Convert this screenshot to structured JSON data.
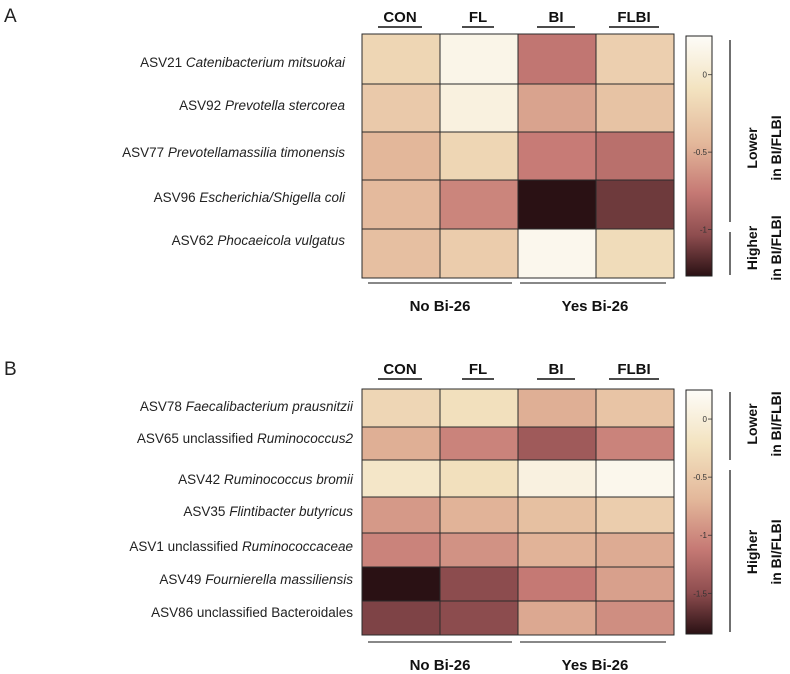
{
  "colors": {
    "scale_stops": [
      "#fdfcf8",
      "#f3e3c0",
      "#e3b79a",
      "#c67a75",
      "#8e4d4f",
      "#2a1114"
    ],
    "grid_line": "#2b2b2b",
    "text": "#222222"
  },
  "chart_data": [
    {
      "panel": "A",
      "type": "heatmap",
      "columns": [
        "CON",
        "FL",
        "BI",
        "FLBI"
      ],
      "groups": [
        {
          "label": "No Bi-26",
          "columns": [
            "CON",
            "FL"
          ]
        },
        {
          "label": "Yes Bi-26",
          "columns": [
            "BI",
            "FLBI"
          ]
        }
      ],
      "rows": [
        {
          "prefix": "ASV21",
          "taxon": "Catenibacterium mitsuokai",
          "italic": true
        },
        {
          "prefix": "ASV92",
          "taxon": "Prevotella stercorea",
          "italic": true
        },
        {
          "prefix": "ASV77",
          "taxon": "Prevotellamassilia timonensis",
          "italic": true
        },
        {
          "prefix": "ASV96",
          "taxon": "Escherichia/Shigella coli",
          "italic": true
        },
        {
          "prefix": "ASV62",
          "taxon": "Phocaeicola vulgatus",
          "italic": true
        }
      ],
      "values": [
        [
          -0.2,
          0.15,
          -0.78,
          -0.25
        ],
        [
          -0.3,
          0.1,
          -0.55,
          -0.35
        ],
        [
          -0.45,
          -0.2,
          -0.75,
          -0.82
        ],
        [
          -0.42,
          -0.7,
          -1.3,
          -1.12
        ],
        [
          -0.38,
          -0.28,
          0.18,
          -0.15
        ]
      ],
      "scale": {
        "min": -1.3,
        "max": 0.25,
        "ticks": [
          0,
          -0.5,
          -1
        ],
        "tick_labels": [
          "0",
          "-0.5",
          "-1"
        ]
      },
      "brackets": [
        {
          "line1": "Lower",
          "line2": "in BI/FLBI",
          "rows": [
            0,
            1,
            2,
            3
          ]
        },
        {
          "line1": "Higher",
          "line2": "in BI/FLBI",
          "rows": [
            4
          ]
        }
      ]
    },
    {
      "panel": "B",
      "type": "heatmap",
      "columns": [
        "CON",
        "FL",
        "BI",
        "FLBI"
      ],
      "groups": [
        {
          "label": "No Bi-26",
          "columns": [
            "CON",
            "FL"
          ]
        },
        {
          "label": "Yes Bi-26",
          "columns": [
            "BI",
            "FLBI"
          ]
        }
      ],
      "rows": [
        {
          "prefix": "ASV78",
          "taxon": "Faecalibacterium prausnitzii",
          "italic": true
        },
        {
          "prefix": "ASV65 unclassified",
          "taxon": "Ruminococcus2",
          "italic": true
        },
        {
          "prefix": "ASV42",
          "taxon": "Ruminococcus bromii",
          "italic": true
        },
        {
          "prefix": "ASV35",
          "taxon": "Flintibacter butyricus",
          "italic": true
        },
        {
          "prefix": "ASV1 unclassified",
          "taxon": "Ruminococcaceae",
          "italic": true
        },
        {
          "prefix": "ASV49",
          "taxon": "Fournierella massiliensis",
          "italic": true
        },
        {
          "prefix": "ASV86 unclassified Bacteroidales",
          "taxon": "",
          "italic": false
        }
      ],
      "values": [
        [
          -0.35,
          -0.25,
          -0.75,
          -0.55
        ],
        [
          -0.75,
          -1.05,
          -1.38,
          -1.05
        ],
        [
          -0.15,
          -0.25,
          0.05,
          0.15
        ],
        [
          -0.9,
          -0.72,
          -0.6,
          -0.45
        ],
        [
          -1.05,
          -0.95,
          -0.72,
          -0.78
        ],
        [
          -1.85,
          -1.5,
          -1.12,
          -0.85
        ],
        [
          -1.55,
          -1.5,
          -0.8,
          -0.98
        ]
      ],
      "scale": {
        "min": -1.85,
        "max": 0.25,
        "ticks": [
          0,
          -0.5,
          -1,
          -1.5
        ],
        "tick_labels": [
          "0",
          "-0.5",
          "-1",
          "-1.5"
        ]
      },
      "brackets": [
        {
          "line1": "Lower",
          "line2": "in BI/FLBI",
          "rows": [
            0,
            1
          ]
        },
        {
          "line1": "Higher",
          "line2": "in BI/FLBI",
          "rows": [
            2,
            3,
            4,
            5,
            6
          ]
        }
      ]
    }
  ]
}
